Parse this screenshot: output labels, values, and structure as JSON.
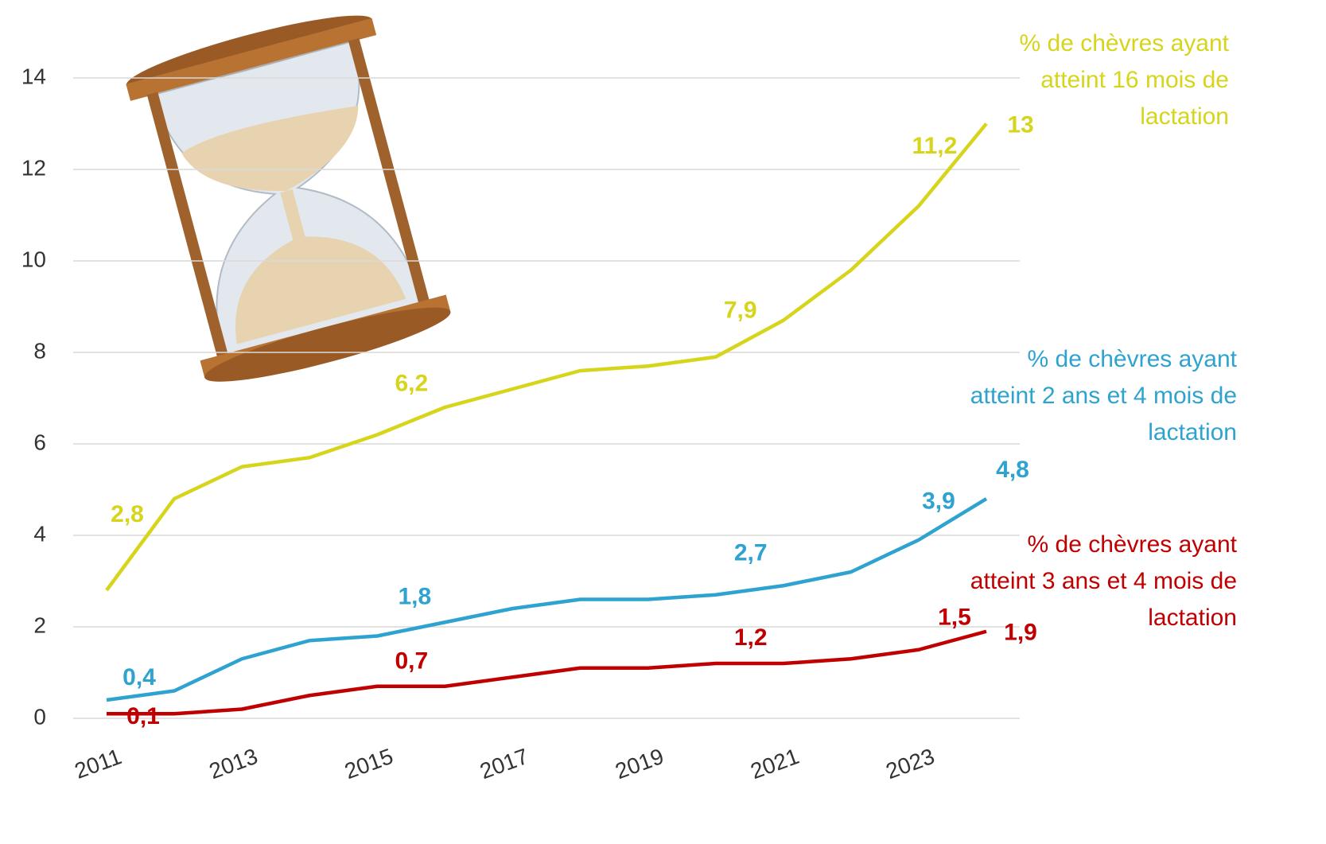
{
  "chart_data": {
    "type": "line",
    "categories": [
      "2011",
      null,
      "2013",
      null,
      "2015",
      null,
      "2017",
      null,
      "2019",
      null,
      "2021",
      null,
      "2023",
      null
    ],
    "ylim": [
      0,
      14
    ],
    "yticks": [
      0,
      2,
      4,
      6,
      8,
      10,
      12,
      14
    ],
    "grid": true,
    "series": [
      {
        "name": "% de chèvres ayant atteint 16 mois de lactation",
        "color": "#d6d51c",
        "values": [
          2.8,
          4.8,
          5.5,
          5.7,
          6.2,
          6.8,
          7.2,
          7.6,
          7.7,
          7.9,
          8.7,
          9.8,
          11.2,
          13
        ],
        "value_labels": [
          "2,8",
          null,
          null,
          null,
          "6,2",
          null,
          null,
          null,
          null,
          "7,9",
          null,
          null,
          "11,2",
          "13"
        ]
      },
      {
        "name": "% de chèvres ayant atteint 2 ans et 4 mois de lactation",
        "color": "#2fa3cf",
        "values": [
          0.4,
          0.6,
          1.3,
          1.7,
          1.8,
          2.1,
          2.4,
          2.6,
          2.6,
          2.7,
          2.9,
          3.2,
          3.9,
          4.8
        ],
        "value_labels": [
          "0,4",
          null,
          null,
          null,
          "1,8",
          null,
          null,
          null,
          null,
          "2,7",
          null,
          null,
          "3,9",
          "4,8"
        ]
      },
      {
        "name": "% de chèvres ayant atteint 3 ans et 4 mois de lactation",
        "color": "#c00000",
        "values": [
          0.1,
          0.1,
          0.2,
          0.5,
          0.7,
          0.7,
          0.9,
          1.1,
          1.1,
          1.2,
          1.2,
          1.3,
          1.5,
          1.9
        ],
        "value_labels": [
          "0,1",
          null,
          null,
          null,
          "0,7",
          null,
          null,
          null,
          null,
          "1,2",
          null,
          null,
          "1,5",
          "1,9"
        ]
      }
    ]
  }
}
